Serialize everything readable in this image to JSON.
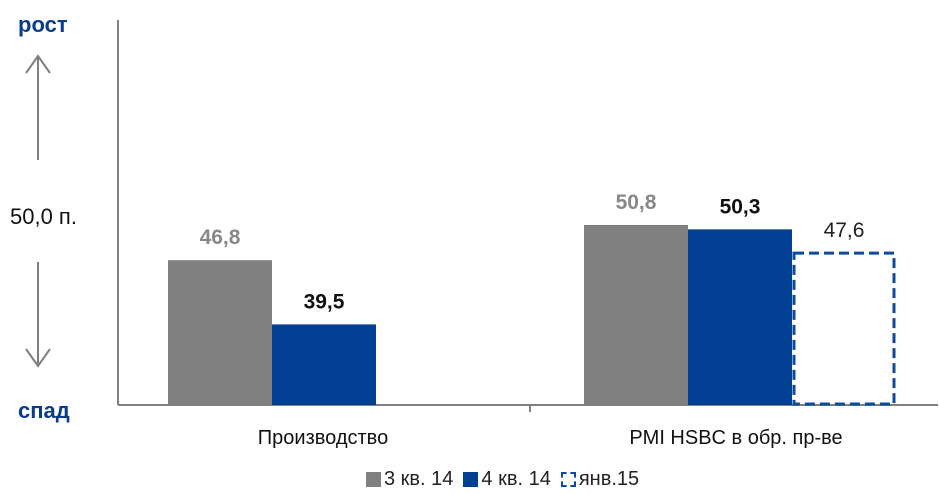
{
  "labels": {
    "top": "рост",
    "bottom": "спад",
    "mid": "50,0 п."
  },
  "chart_data": {
    "type": "bar",
    "categories": [
      "Производство",
      "PMI HSBC в обр. пр-ве"
    ],
    "series": [
      {
        "name": "3 кв. 14",
        "values": [
          46.8,
          50.8
        ],
        "labels": [
          "46,8",
          "50,8"
        ],
        "color": "#808080",
        "style": "solid",
        "label_color": "#888888",
        "label_bold": true
      },
      {
        "name": "4 кв. 14",
        "values": [
          39.5,
          50.3
        ],
        "labels": [
          "39,5",
          "50,3"
        ],
        "color": "#003f91",
        "style": "solid",
        "label_color": "#111111",
        "label_bold": true
      },
      {
        "name": "янв.15",
        "values": [
          null,
          47.6
        ],
        "labels": [
          null,
          "47,6"
        ],
        "color": "#0b4a9c",
        "style": "dashed",
        "label_color": "#222222",
        "label_bold": false
      }
    ],
    "baseline": 50.0,
    "legend_position": "bottom",
    "grid": false
  }
}
